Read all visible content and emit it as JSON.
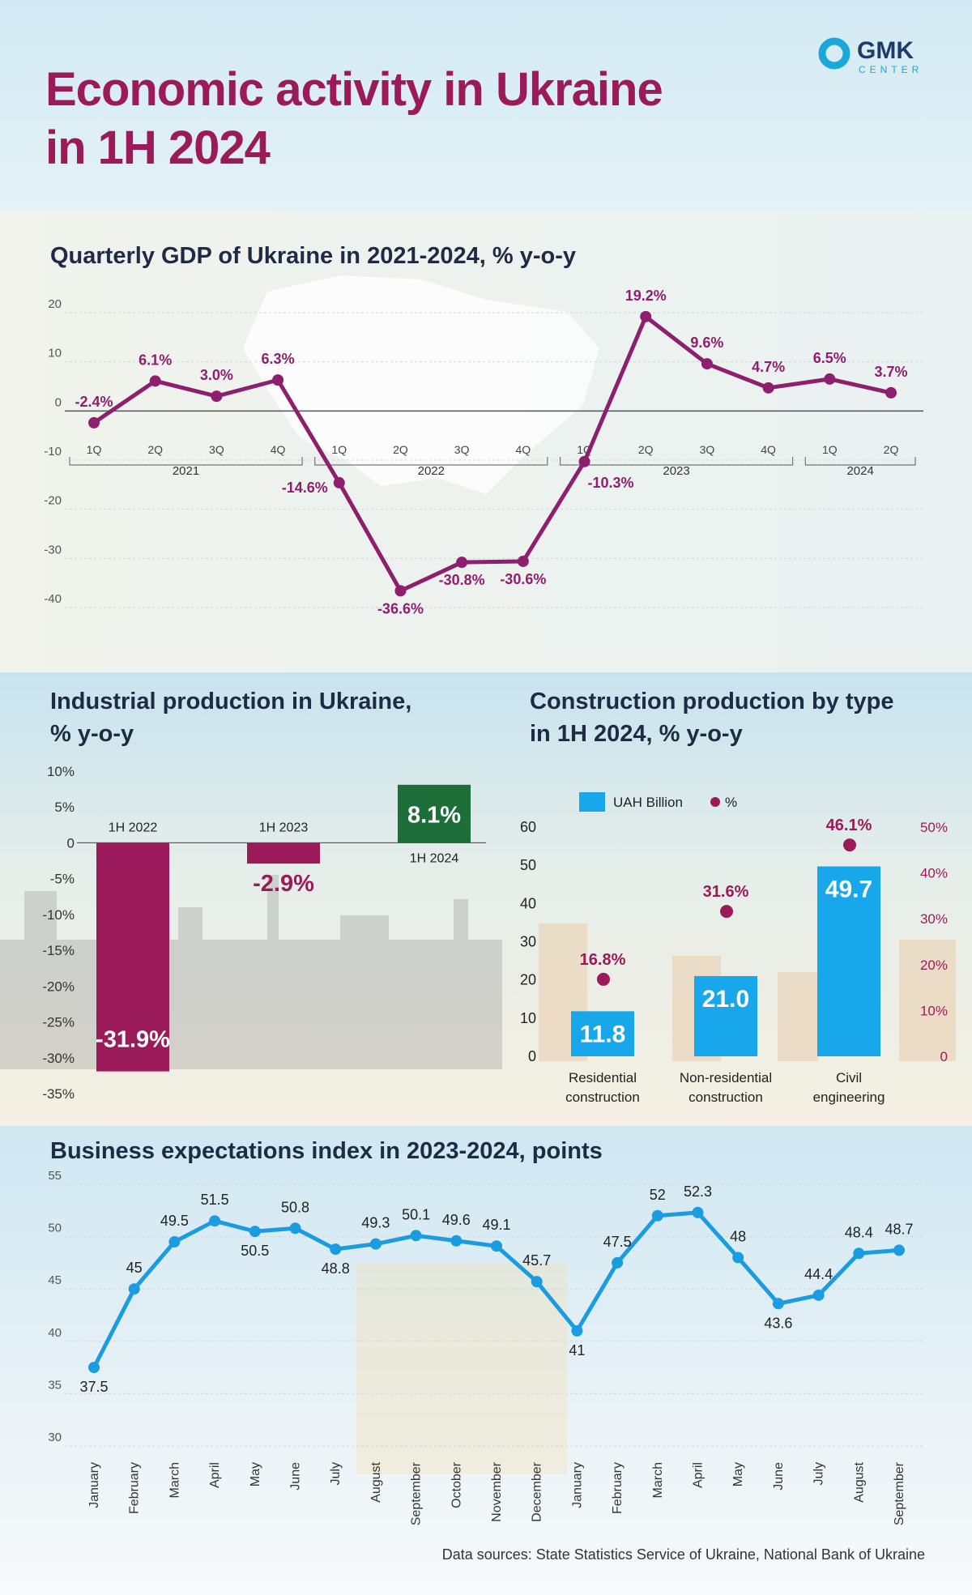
{
  "header": {
    "title": [
      "Economic activity in Ukraine",
      "in 1H 2024"
    ]
  },
  "logo": {
    "name": "GMK",
    "tagline": "CENTER"
  },
  "chart_data": [
    {
      "type": "line",
      "title": "Quarterly GDP of Ukraine in 2021-2024, % y-o-y",
      "categories": [
        "1Q",
        "2Q",
        "3Q",
        "4Q",
        "1Q",
        "2Q",
        "3Q",
        "4Q",
        "1Q",
        "2Q",
        "3Q",
        "4Q",
        "1Q",
        "2Q"
      ],
      "groups": [
        "2021",
        "2022",
        "2023",
        "2024"
      ],
      "values": [
        -2.4,
        6.1,
        3.0,
        6.3,
        -14.6,
        -36.6,
        -30.8,
        -30.6,
        -10.3,
        19.2,
        9.6,
        4.7,
        6.5,
        3.7
      ],
      "value_labels": [
        "-2.4%",
        "6.1%",
        "3.0%",
        "6.3%",
        "-14.6%",
        "-36.6%",
        "-30.8%",
        "-30.6%",
        "-10.3%",
        "19.2%",
        "9.6%",
        "4.7%",
        "6.5%",
        "3.7%"
      ],
      "color": "#8e1f6e",
      "ylim": [
        -40,
        20
      ],
      "yticks": [
        20,
        10,
        0,
        -10,
        -20,
        -30,
        -40
      ],
      "grid": true
    },
    {
      "type": "bar",
      "title": [
        "Industrial production in Ukraine,",
        "% y-o-y"
      ],
      "categories": [
        "1H 2022",
        "1H 2023",
        "1H 2024"
      ],
      "values": [
        -31.9,
        -2.9,
        8.1
      ],
      "value_labels": [
        "-31.9%",
        "-2.9%",
        "8.1%"
      ],
      "colors": [
        "#9b1b5a",
        "#9b1b5a",
        "#1e6e3a"
      ],
      "ylim": [
        -35,
        10
      ],
      "yticks": [
        {
          "value": 10,
          "label": "10%"
        },
        {
          "value": 5,
          "label": "5%"
        },
        0,
        {
          "value": -5,
          "label": "-5%"
        },
        {
          "value": -10,
          "label": "-10%"
        },
        {
          "value": -15,
          "label": "-15%"
        },
        {
          "value": -20,
          "label": "-20%"
        },
        {
          "value": -25,
          "label": "-25%"
        },
        {
          "value": -30,
          "label": "-30%"
        },
        {
          "value": -35,
          "label": "-35%"
        }
      ]
    },
    {
      "type": "combo",
      "title": [
        "Construction production by type",
        "in 1H 2024, % y-o-y"
      ],
      "categories": [
        "Residential construction",
        "Non-residential construction",
        "Civil engineering"
      ],
      "series": [
        {
          "name": "UAH Billion",
          "type": "bar",
          "color": "#19a7ec",
          "values": [
            11.8,
            21.0,
            49.7
          ],
          "value_labels": [
            "11.8",
            "21.0",
            "49.7"
          ]
        },
        {
          "name": "%",
          "type": "scatter",
          "axis": "y2",
          "color": "#9b1b5a",
          "values": [
            16.8,
            31.6,
            46.1
          ],
          "value_labels": [
            "16.8%",
            "31.6%",
            "46.1%"
          ]
        }
      ],
      "ylim": [
        0,
        60
      ],
      "yticks": [
        0,
        10,
        20,
        30,
        40,
        50,
        60
      ],
      "y2lim": [
        0,
        50
      ],
      "y2ticks": [
        0,
        {
          "value": 10,
          "label": "10%"
        },
        {
          "value": 20,
          "label": "20%"
        },
        {
          "value": 30,
          "label": "30%"
        },
        {
          "value": 40,
          "label": "40%"
        },
        {
          "value": 50,
          "label": "50%"
        }
      ]
    },
    {
      "type": "line",
      "title": "Business expectations index in 2023-2024, points",
      "categories": [
        "January",
        "February",
        "March",
        "April",
        "May",
        "June",
        "July",
        "August",
        "September",
        "October",
        "November",
        "December",
        "January",
        "February",
        "March",
        "April",
        "May",
        "June",
        "July",
        "August",
        "September"
      ],
      "values": [
        37.5,
        45,
        49.5,
        51.5,
        50.5,
        50.8,
        48.8,
        49.3,
        50.1,
        49.6,
        49.1,
        45.7,
        41,
        47.5,
        52,
        52.3,
        48,
        43.6,
        44.4,
        48.4,
        48.7
      ],
      "color": "#1c9ce0",
      "ylim": [
        30,
        55
      ],
      "yticks": [
        55,
        50,
        45,
        40,
        35,
        30
      ],
      "grid": true
    }
  ],
  "footer": {
    "source": "Data sources: State Statistics Service of Ukraine, National Bank of Ukraine"
  }
}
